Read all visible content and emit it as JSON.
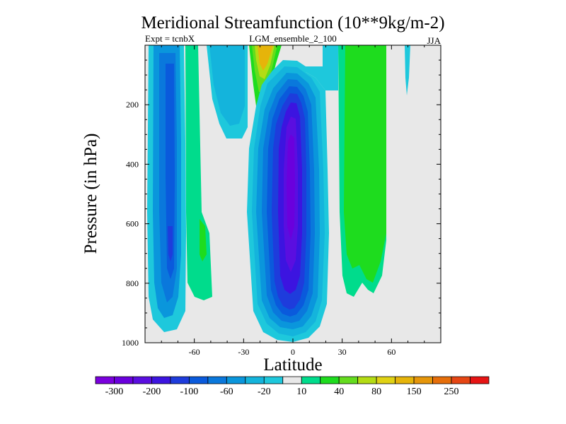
{
  "chart_data": {
    "type": "heatmap",
    "title": "Meridional Streamfunction (10**9kg/m-2)",
    "subtitle_left": "Expt = tcnbX",
    "subtitle_center": "LGM_ensemble_2_100",
    "subtitle_right": "JJA",
    "xlabel": "Latitude",
    "ylabel": "Pressure (in hPa)",
    "xlim": [
      -90,
      90
    ],
    "ylim": [
      1000,
      0
    ],
    "x_ticks": [
      -60,
      -30,
      0,
      30,
      60
    ],
    "y_ticks": [
      200,
      400,
      600,
      800,
      1000
    ],
    "colorbar": {
      "levels": [
        -300,
        -250,
        -200,
        -150,
        -100,
        -80,
        -60,
        -40,
        -20,
        -10,
        10,
        20,
        40,
        60,
        80,
        100,
        150,
        200,
        250,
        300
      ],
      "tick_labels": [
        "-300",
        "-200",
        "-100",
        "-60",
        "-20",
        "10",
        "40",
        "80",
        "150",
        "250"
      ],
      "tick_levels": [
        -300,
        -200,
        -100,
        -60,
        -20,
        10,
        40,
        80,
        150,
        250
      ],
      "colors": [
        "#7a00dd",
        "#6a00dd",
        "#5a0ee0",
        "#3c14e0",
        "#1e3cdc",
        "#0a5adc",
        "#0a78dc",
        "#0a96dc",
        "#14b4dc",
        "#1ec8dc",
        "#e8e8e8",
        "#00dc8c",
        "#1edc1e",
        "#64dc1e",
        "#b4dc14",
        "#e0d214",
        "#e6b40a",
        "#e6960a",
        "#e66e0a",
        "#e64614",
        "#e61414"
      ]
    },
    "field_summary": [
      {
        "name": "southern cell",
        "lat_range": [
          -80,
          -60
        ],
        "pressure_range": [
          30,
          970
        ],
        "min_value": -100
      },
      {
        "name": "central cell",
        "lat_range": [
          -15,
          15
        ],
        "pressure_range": [
          60,
          990
        ],
        "min_value": -300
      },
      {
        "name": "northern positive band",
        "lat_range": [
          20,
          60
        ],
        "pressure_range": [
          30,
          850
        ],
        "max_value": 40
      },
      {
        "name": "upper positive plume",
        "lat_range": [
          -20,
          -12
        ],
        "pressure_range": [
          30,
          230
        ],
        "max_value": 100
      }
    ]
  }
}
